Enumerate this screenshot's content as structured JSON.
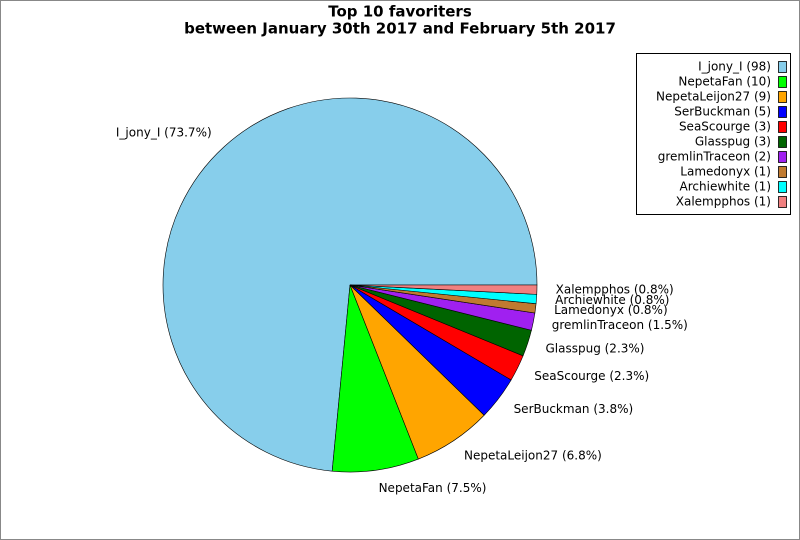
{
  "chart_data": {
    "type": "pie",
    "title": "Top 10 favoriters",
    "subtitle": "between January 30th 2017 and February 5th 2017",
    "categories": [
      "I_jony_I (98)",
      "NepetaFan (10)",
      "NepetaLeijon27 (9)",
      "SerBuckman (5)",
      "SeaScourge (3)",
      "Glasspug (3)",
      "gremlinTraceon (2)",
      "Lamedonyx (1)",
      "Archiewhite (1)",
      "Xalempphos (1)"
    ],
    "values": [
      73.7,
      7.5,
      6.8,
      3.8,
      2.3,
      2.3,
      1.5,
      0.8,
      0.8,
      0.8
    ],
    "value_labels": [
      "I_jony_I (73.7%)",
      "NepetaFan (7.5%)",
      "NepetaLeijon27 (6.8%)",
      "SerBuckman (3.8%)",
      "SeaScourge (2.3%)",
      "Glasspug (2.3%)",
      "gremlinTraceon (1.5%)",
      "Lamedonyx (0.8%)",
      "Archiewhite (0.8%)",
      "Xalempphos (0.8%)"
    ],
    "colors": [
      "#87ceeb",
      "#00ff00",
      "#ffa500",
      "#0000ff",
      "#ff0000",
      "#006400",
      "#a020f0",
      "#c07a30",
      "#00ffff",
      "#f08080"
    ],
    "legend": "upper right"
  }
}
